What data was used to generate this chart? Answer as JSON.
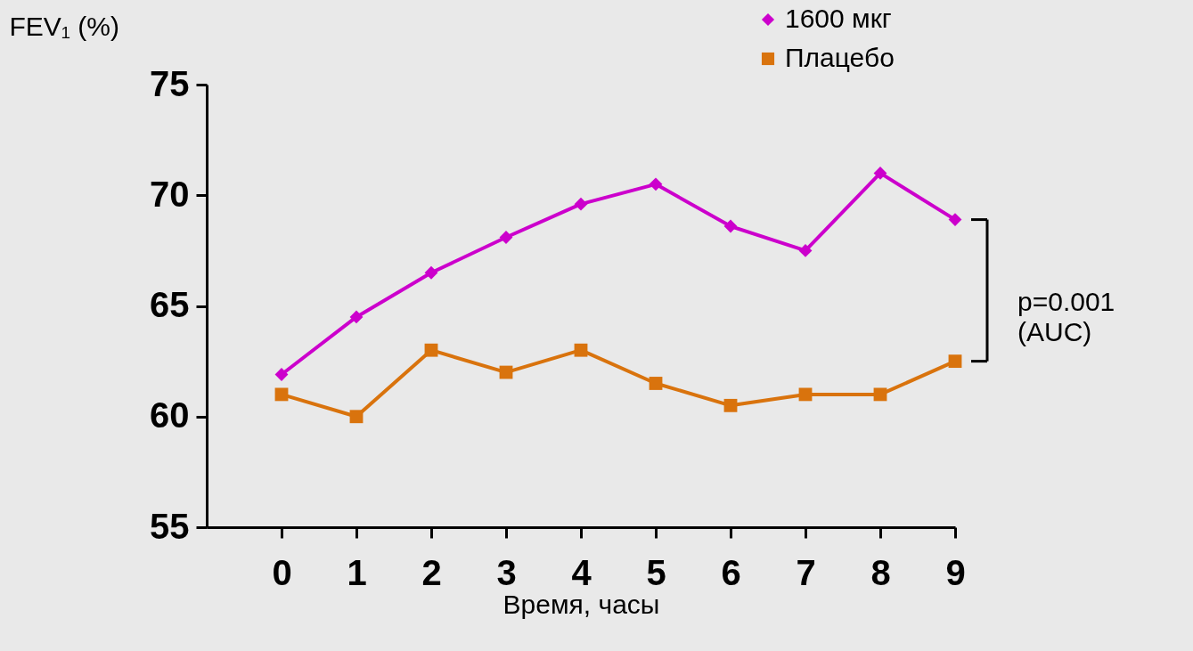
{
  "chart_data": {
    "type": "line",
    "xlabel": "Время, часы",
    "ylabel": "FEV₁ (%)",
    "x": [
      0,
      1,
      2,
      3,
      4,
      5,
      6,
      7,
      8,
      9
    ],
    "series": [
      {
        "name": "1600 мкг",
        "color": "#cc00cc",
        "marker": "diamond",
        "values": [
          61.9,
          64.5,
          66.5,
          68.1,
          69.6,
          70.5,
          68.6,
          67.5,
          71.0,
          68.9
        ]
      },
      {
        "name": "Плацебо",
        "color": "#d9730d",
        "marker": "square",
        "values": [
          61.0,
          60.0,
          63.0,
          62.0,
          63.0,
          61.5,
          60.5,
          61.0,
          61.0,
          62.5
        ]
      }
    ],
    "xlim": [
      -1,
      9
    ],
    "xticks": [
      0,
      1,
      2,
      3,
      4,
      5,
      6,
      7,
      8,
      9
    ],
    "ylim": [
      55,
      75
    ],
    "yticks": [
      55,
      60,
      65,
      70,
      75
    ],
    "grid": false,
    "legend": "top right",
    "line_style": "solid",
    "annotations": [
      "p=0.001\n(AUC)"
    ]
  }
}
